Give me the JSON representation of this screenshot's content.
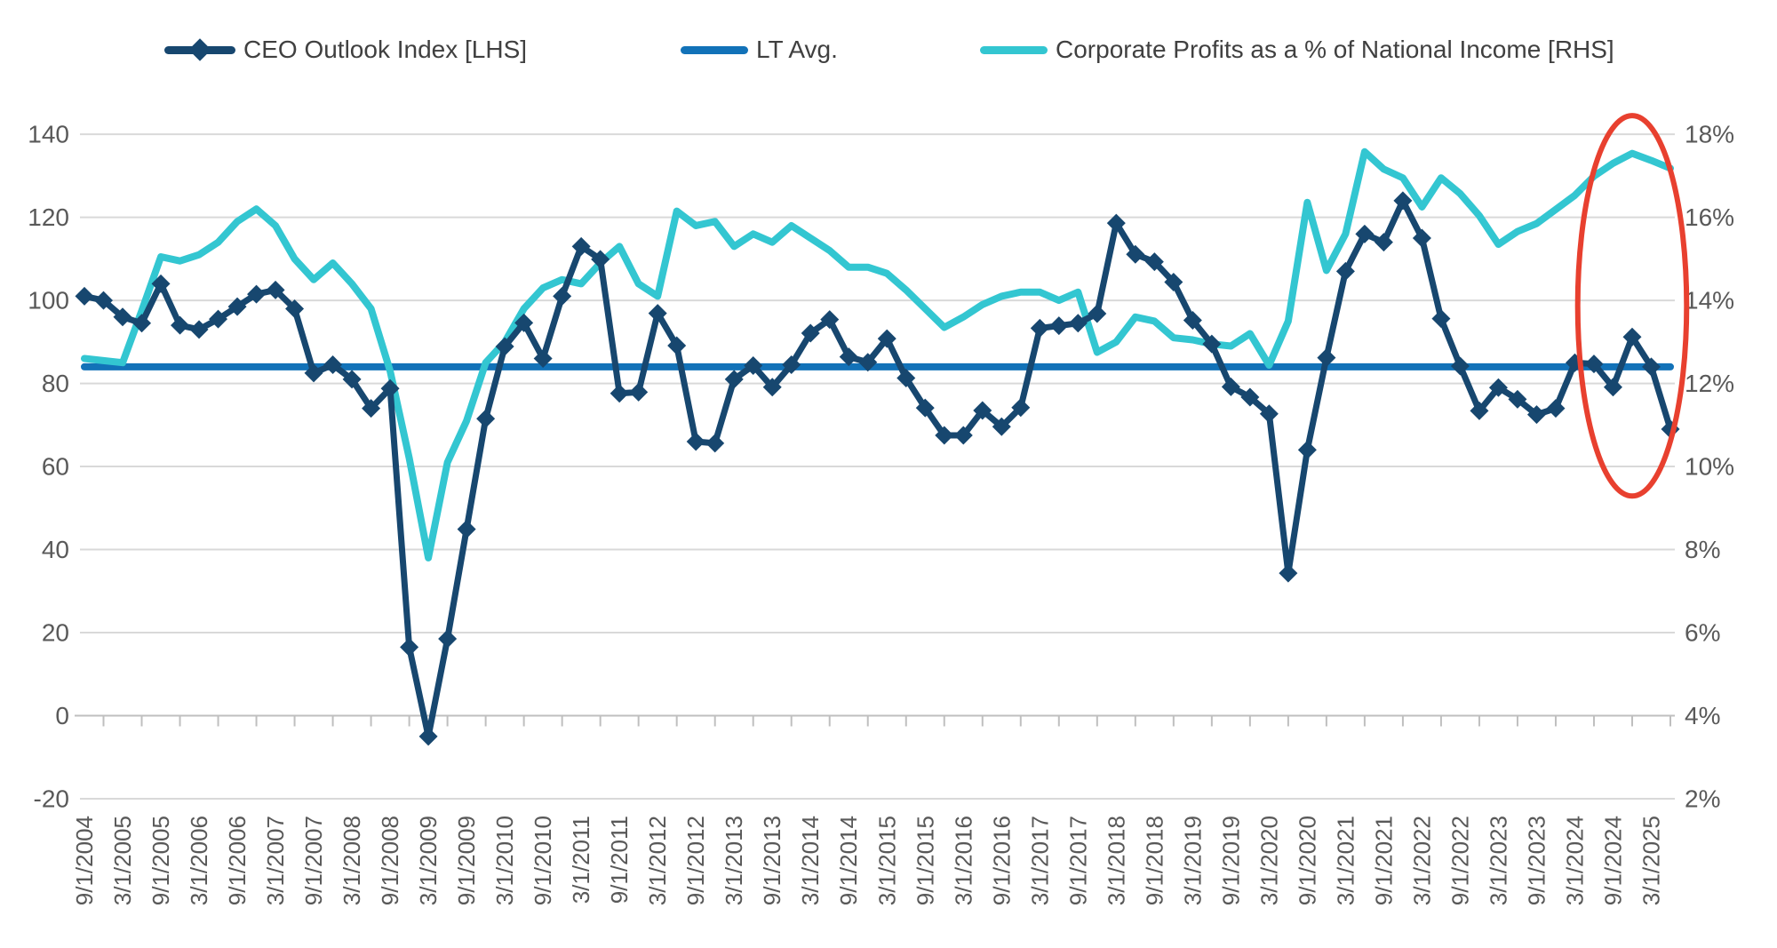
{
  "colors": {
    "ceo_navy": "#17476F",
    "lt_avg_blue": "#1272B8",
    "profits_cyan": "#33C6D1",
    "annotation_red": "#E8402F",
    "gridline": "#D9D9D9",
    "axis_line": "#BFBFBF",
    "axis_text": "#595959",
    "legend_text": "#404040",
    "background": "#FFFFFF"
  },
  "legend": [
    {
      "label": "CEO Outlook Index [LHS]",
      "color": "#17476F",
      "marker": "diamond-line"
    },
    {
      "label": "LT Avg.",
      "color": "#1272B8",
      "marker": "line"
    },
    {
      "label": "Corporate Profits as a % of National Income [RHS]",
      "color": "#33C6D1",
      "marker": "line"
    }
  ],
  "chart_data": {
    "type": "line",
    "frequency": "quarterly",
    "points_per_tick": 2,
    "x_tick_labels": [
      "9/1/2004",
      "3/1/2005",
      "9/1/2005",
      "3/1/2006",
      "9/1/2006",
      "3/1/2007",
      "9/1/2007",
      "3/1/2008",
      "9/1/2008",
      "3/1/2009",
      "9/1/2009",
      "3/1/2010",
      "9/1/2010",
      "3/1/2011",
      "9/1/2011",
      "3/1/2012",
      "9/1/2012",
      "3/1/2013",
      "9/1/2013",
      "3/1/2014",
      "9/1/2014",
      "3/1/2015",
      "9/1/2015",
      "3/1/2016",
      "9/1/2016",
      "3/1/2017",
      "9/1/2017",
      "3/1/2018",
      "9/1/2018",
      "3/1/2019",
      "9/1/2019",
      "3/1/2020",
      "9/1/2020",
      "3/1/2021",
      "9/1/2021",
      "3/1/2022",
      "9/1/2022",
      "3/1/2023",
      "9/1/2023",
      "3/1/2024",
      "9/1/2024",
      "3/1/2025"
    ],
    "left_axis": {
      "ticks": [
        140,
        120,
        100,
        80,
        60,
        40,
        20,
        0,
        -20
      ],
      "range": [
        -20,
        140
      ],
      "grid": true
    },
    "right_axis": {
      "tick_labels": [
        "18%",
        "16%",
        "14%",
        "12%",
        "10%",
        "8%",
        "6%",
        "4%",
        "2%"
      ],
      "range": [
        2,
        18
      ]
    },
    "series": [
      {
        "name": "CEO Outlook Index [LHS]",
        "axis": "left",
        "color": "#17476F",
        "marker": "diamond",
        "values": [
          101,
          100,
          96,
          94.5,
          104,
          94,
          93,
          95.5,
          98.5,
          101.5,
          102.5,
          98,
          82.5,
          84.5,
          81,
          74,
          78.8,
          16.5,
          -5,
          18.5,
          44.9,
          71.5,
          88.9,
          94.6,
          86,
          101,
          113,
          109.9,
          77.6,
          77.9,
          96.9,
          89.1,
          66,
          65.6,
          81,
          84.3,
          79.1,
          84.5,
          92.1,
          95.4,
          86.4,
          85.1,
          90.8,
          81.3,
          74.1,
          67.5,
          67.5,
          73.5,
          69.6,
          74.2,
          93.3,
          93.9,
          94.5,
          96.8,
          118.6,
          111.1,
          109.3,
          104.4,
          95.2,
          89.5,
          79.2,
          76.7,
          72.7,
          34.3,
          64,
          86.2,
          107,
          116,
          114,
          124,
          115,
          95.6,
          84.2,
          73.4,
          79,
          76.2,
          72.5,
          74,
          85,
          84.7,
          79.1,
          91.2,
          84,
          69
        ]
      },
      {
        "name": "LT Avg.",
        "axis": "left",
        "color": "#1272B8",
        "marker": "none",
        "constant_value": 84
      },
      {
        "name": "Corporate Profits as a % of National Income [RHS]",
        "axis": "right",
        "color": "#33C6D1",
        "marker": "none",
        "values": [
          12.6,
          12.55,
          12.5,
          13.75,
          15.05,
          14.95,
          15.1,
          15.4,
          15.9,
          16.2,
          15.8,
          15.0,
          14.5,
          14.9,
          14.4,
          13.8,
          12.3,
          10.2,
          7.8,
          10.1,
          11.1,
          12.5,
          13.0,
          13.8,
          14.3,
          14.5,
          14.4,
          14.9,
          15.3,
          14.4,
          14.1,
          16.15,
          15.8,
          15.9,
          15.3,
          15.6,
          15.4,
          15.8,
          15.5,
          15.2,
          14.8,
          14.8,
          14.65,
          14.25,
          13.8,
          13.35,
          13.6,
          13.9,
          14.1,
          14.2,
          14.2,
          14.0,
          14.2,
          12.75,
          13.0,
          13.6,
          13.5,
          13.1,
          13.05,
          12.95,
          12.9,
          13.2,
          12.44,
          13.5,
          16.36,
          14.72,
          15.6,
          17.58,
          17.16,
          16.95,
          16.25,
          16.95,
          16.57,
          16.04,
          15.35,
          15.66,
          15.85,
          16.19,
          16.53,
          16.99,
          17.3,
          17.54,
          17.37,
          17.18
        ]
      }
    ],
    "annotation": {
      "shape": "ellipse",
      "color": "#E8402F",
      "stroke_width": 6,
      "center_index": 81.0,
      "center_value_left": 98.7,
      "radius_x_quarters": 2.85,
      "radius_y_left_units": 45.8
    }
  }
}
